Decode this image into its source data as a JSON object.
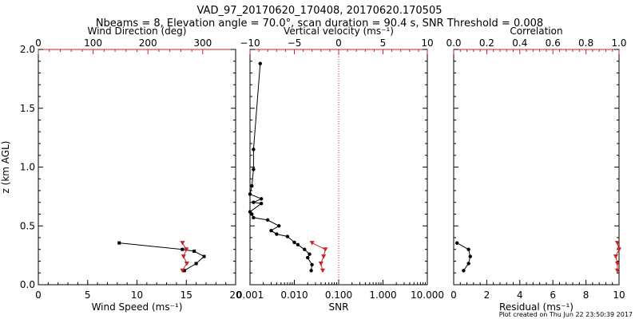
{
  "title_line1": "VAD_97_20170620_170408, 20170620.170505",
  "title_line2": "Nbeams = 8, Elevation angle = 70.0°, scan duration = 90.4 s, SNR Threshold = 0.008",
  "footer": "Plot created on Thu Jun 22 23:50:39 2017",
  "colors": {
    "black": "#000000",
    "red": "#cc2222",
    "axis": "#000000"
  },
  "chart_data": [
    {
      "type": "line",
      "panel": "wind",
      "ylabel": "z (km AGL)",
      "ylim": [
        0,
        2.0
      ],
      "yticks": [
        "0.0",
        "0.5",
        "1.0",
        "1.5",
        "2.0"
      ],
      "bottom_axis": {
        "label": "Wind Speed (ms⁻¹)",
        "lim": [
          0,
          20
        ],
        "ticks": [
          "0",
          "5",
          "10",
          "15",
          "20"
        ]
      },
      "top_axis": {
        "label": "Wind Direction (deg)",
        "lim": [
          0,
          360
        ],
        "ticks": [
          "0",
          "100",
          "200",
          "300"
        ]
      },
      "series": [
        {
          "axis": "bottom",
          "color": "#000000",
          "marker": "square",
          "x": [
            8.2,
            14.6,
            15.8,
            16.8,
            16.0,
            14.8
          ],
          "y": [
            0.355,
            0.3,
            0.285,
            0.24,
            0.18,
            0.12
          ]
        },
        {
          "axis": "top",
          "color": "#cc2222",
          "marker": "triangle",
          "x": [
            263,
            270,
            265,
            271,
            263
          ],
          "y": [
            0.355,
            0.3,
            0.24,
            0.18,
            0.12
          ]
        }
      ]
    },
    {
      "type": "line",
      "panel": "snr",
      "ylim": [
        0,
        2.0
      ],
      "bottom_axis": {
        "label": "SNR",
        "scale": "log",
        "lim": [
          0.001,
          10
        ],
        "ticks": [
          "0.001",
          "0.010",
          "0.100",
          "1.000",
          "10.000"
        ]
      },
      "top_axis": {
        "label": "Vertical velocity (ms⁻¹)",
        "lim": [
          -10,
          10
        ],
        "ticks": [
          "−10",
          "−5",
          "0",
          "5",
          "10"
        ]
      },
      "vline_top_x": 0,
      "series": [
        {
          "axis": "bottom",
          "color": "#000000",
          "marker": "dot",
          "x": [
            0.0017,
            0.0012,
            0.0012,
            0.0011,
            0.001,
            0.0018,
            0.0012,
            0.0018,
            0.001,
            0.0011,
            0.0012,
            0.0025,
            0.0045,
            0.003,
            0.004,
            0.007,
            0.01,
            0.012,
            0.017,
            0.022,
            0.02,
            0.025,
            0.024
          ],
          "y": [
            1.88,
            1.15,
            0.98,
            0.84,
            0.77,
            0.73,
            0.7,
            0.69,
            0.62,
            0.6,
            0.57,
            0.55,
            0.5,
            0.46,
            0.43,
            0.41,
            0.36,
            0.34,
            0.3,
            0.26,
            0.23,
            0.17,
            0.12
          ]
        },
        {
          "axis": "top",
          "color": "#cc2222",
          "marker": "triangle",
          "x": [
            -3.0,
            -1.5,
            -1.7,
            -2.0,
            -1.8
          ],
          "y": [
            0.355,
            0.3,
            0.24,
            0.18,
            0.12
          ]
        }
      ]
    },
    {
      "type": "line",
      "panel": "residual",
      "ylim": [
        0,
        2.0
      ],
      "bottom_axis": {
        "label": "Residual (ms⁻¹)",
        "lim": [
          0,
          10
        ],
        "ticks": [
          "0",
          "2",
          "4",
          "6",
          "8",
          "10"
        ]
      },
      "top_axis": {
        "label": "Correlation",
        "lim": [
          0,
          1.0
        ],
        "ticks": [
          "0.0",
          "0.2",
          "0.4",
          "0.6",
          "0.8",
          "1.0"
        ]
      },
      "series": [
        {
          "axis": "bottom",
          "color": "#000000",
          "marker": "dot",
          "x": [
            0.2,
            0.9,
            1.0,
            0.9,
            0.6
          ],
          "y": [
            0.355,
            0.3,
            0.24,
            0.18,
            0.12
          ]
        },
        {
          "axis": "top",
          "color": "#cc2222",
          "marker": "triangle",
          "x": [
            0.99,
            1.0,
            0.98,
            0.99,
            0.99
          ],
          "y": [
            0.355,
            0.3,
            0.24,
            0.18,
            0.12
          ]
        }
      ]
    }
  ]
}
